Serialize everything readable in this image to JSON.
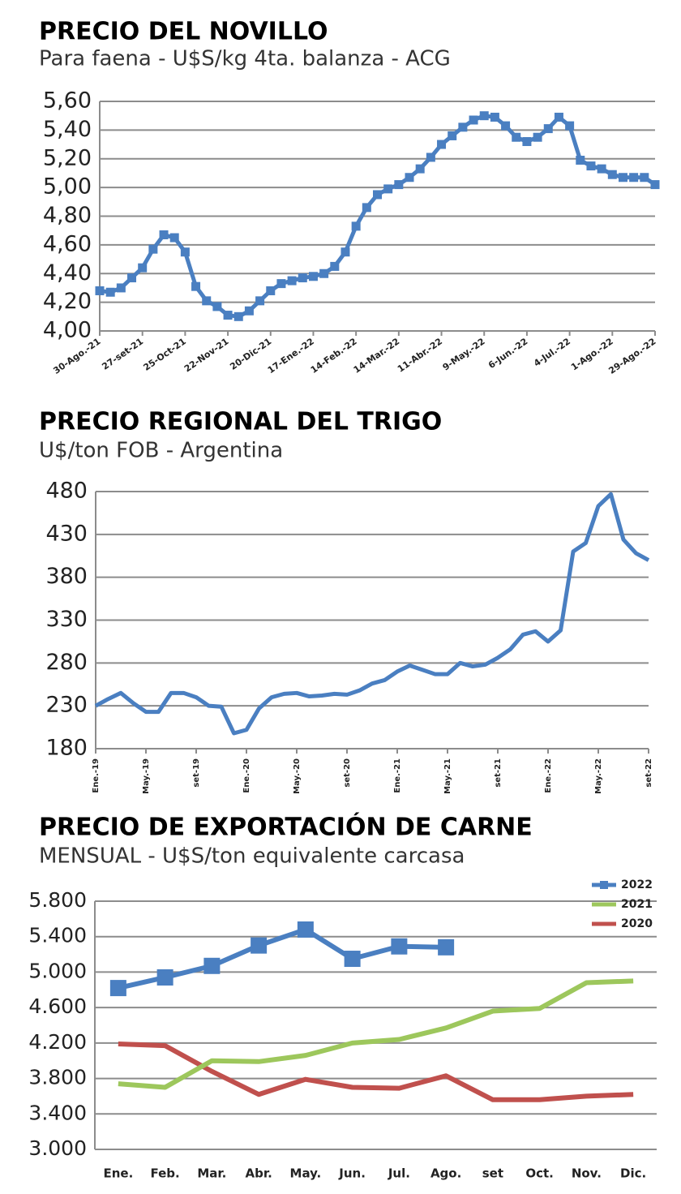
{
  "chart_data": [
    {
      "type": "line",
      "title": "PRECIO DEL NOVILLO",
      "subtitle": "Para faena - U$S/kg 4ta. balanza - ACG",
      "categories": [
        "30-Ago.-21",
        null,
        null,
        null,
        "27-set-21",
        null,
        null,
        null,
        "25-Oct-21",
        null,
        null,
        null,
        "22-Nov-21",
        null,
        null,
        null,
        "20-Dic-21",
        null,
        null,
        null,
        "17-Ene.-22",
        null,
        null,
        null,
        "14-Feb.-22",
        null,
        null,
        null,
        "14-Mar.-22",
        null,
        null,
        null,
        "11-Abr.-22",
        null,
        null,
        null,
        "9-May.-22",
        null,
        null,
        null,
        "6-Jun.-22",
        null,
        null,
        null,
        "4-Jul.-22",
        null,
        null,
        null,
        "1-Ago.-22",
        null,
        null,
        null,
        "29-Ago.-22"
      ],
      "values": [
        4.28,
        4.27,
        4.3,
        4.37,
        4.44,
        4.57,
        4.67,
        4.65,
        4.55,
        4.31,
        4.21,
        4.17,
        4.11,
        4.1,
        4.14,
        4.21,
        4.28,
        4.33,
        4.35,
        4.37,
        4.38,
        4.4,
        4.45,
        4.55,
        4.73,
        4.86,
        4.95,
        4.99,
        5.02,
        5.07,
        5.13,
        5.21,
        5.3,
        5.36,
        5.42,
        5.47,
        5.5,
        5.49,
        5.43,
        5.35,
        5.32,
        5.35,
        5.41,
        5.49,
        5.43,
        5.19,
        5.15,
        5.13,
        5.09,
        5.07,
        5.07,
        5.07,
        5.02
      ],
      "color": "#4a7fc1",
      "marker": "square",
      "grid": true,
      "ylim": [
        4.0,
        5.6
      ],
      "yticks": [
        {
          "value": 4.0,
          "label": "4,00"
        },
        {
          "value": 4.2,
          "label": "4,20"
        },
        {
          "value": 4.4,
          "label": "4,40"
        },
        {
          "value": 4.6,
          "label": "4,60"
        },
        {
          "value": 4.8,
          "label": "4,80"
        },
        {
          "value": 5.0,
          "label": "5,00"
        },
        {
          "value": 5.2,
          "label": "5,20"
        },
        {
          "value": 5.4,
          "label": "5,40"
        },
        {
          "value": 5.6,
          "label": "5,60"
        }
      ]
    },
    {
      "type": "line",
      "title": "PRECIO REGIONAL DEL TRIGO",
      "subtitle": "U$/ton FOB - Argentina",
      "categories": [
        "Ene.-19",
        null,
        null,
        null,
        "May.-19",
        null,
        null,
        null,
        "set-19",
        null,
        null,
        null,
        "Ene.-20",
        null,
        null,
        null,
        "May.-20",
        null,
        null,
        null,
        "set-20",
        null,
        null,
        null,
        "Ene.-21",
        null,
        null,
        null,
        "May.-21",
        null,
        null,
        null,
        "set-21",
        null,
        null,
        null,
        "Ene.-22",
        null,
        null,
        null,
        "May.-22",
        null,
        null,
        null,
        "set-22"
      ],
      "values": [
        230,
        238,
        245,
        233,
        223,
        223,
        245,
        245,
        240,
        230,
        229,
        198,
        202,
        227,
        240,
        244,
        245,
        241,
        242,
        244,
        243,
        248,
        256,
        260,
        270,
        277,
        272,
        267,
        267,
        280,
        276,
        278,
        286,
        296,
        313,
        317,
        305,
        318,
        410,
        420,
        463,
        477,
        424,
        408,
        400
      ],
      "color": "#4a7fc1",
      "grid": true,
      "ylim": [
        180,
        480
      ],
      "yticks": [
        180,
        230,
        280,
        330,
        380,
        430,
        480
      ]
    },
    {
      "type": "line",
      "title": "PRECIO DE EXPORTACIÓN DE CARNE",
      "subtitle": "MENSUAL - U$S/ton equivalente carcasa",
      "categories": [
        "Ene.",
        "Feb.",
        "Mar.",
        "Abr.",
        "May.",
        "Jun.",
        "Jul.",
        "Ago.",
        "set",
        "Oct.",
        "Nov.",
        "Dic."
      ],
      "series": [
        {
          "name": "2022",
          "color": "#4a7fc1",
          "marker": "square",
          "values": [
            4820,
            4940,
            5070,
            5300,
            5480,
            5150,
            5290,
            5280,
            null,
            null,
            null,
            null
          ]
        },
        {
          "name": "2021",
          "color": "#9dc75c",
          "values": [
            3740,
            3700,
            4000,
            3990,
            4060,
            4200,
            4240,
            4370,
            4560,
            4590,
            4880,
            4900
          ]
        },
        {
          "name": "2020",
          "color": "#c0504d",
          "values": [
            4190,
            4170,
            3880,
            3620,
            3790,
            3700,
            3690,
            3830,
            3560,
            3560,
            3600,
            3620
          ]
        }
      ],
      "grid": true,
      "legend": "upper right",
      "ylim": [
        3000,
        5800
      ],
      "yticks": [
        {
          "value": 3000,
          "label": "3.000"
        },
        {
          "value": 3400,
          "label": "3.400"
        },
        {
          "value": 3800,
          "label": "3.800"
        },
        {
          "value": 4200,
          "label": "4.200"
        },
        {
          "value": 4600,
          "label": "4.600"
        },
        {
          "value": 5000,
          "label": "5.000"
        },
        {
          "value": 5400,
          "label": "5.400"
        },
        {
          "value": 5800,
          "label": "5.800"
        }
      ]
    }
  ]
}
